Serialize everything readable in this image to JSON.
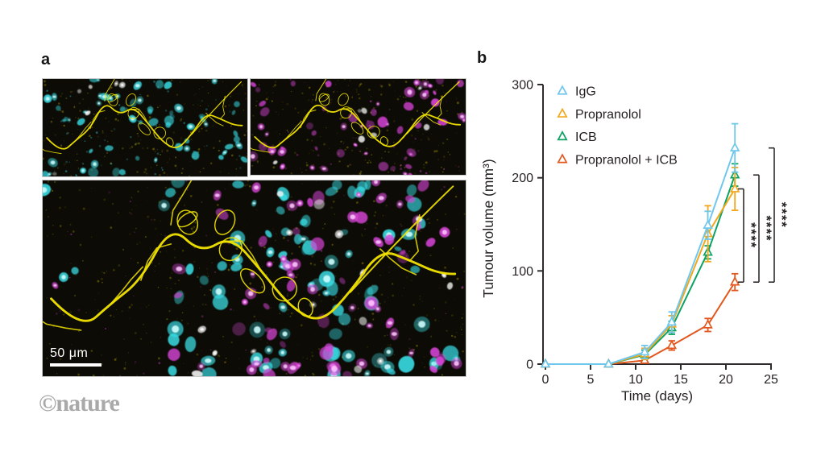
{
  "watermark": "©nature",
  "panel_a": {
    "label": "a",
    "scale_bar_label": "50 μm",
    "microscopy": {
      "background": "#0c0b05",
      "palette": {
        "cyan": "#38dce4",
        "cyan_bright": "#ccffff",
        "magenta": "#d944d9",
        "magenta_bright": "#ffc2ff",
        "white": "#ffffff",
        "yellow": "#f2e400",
        "yellow_dim": "#b5a300"
      },
      "panels": [
        {
          "id": "micro-top-left",
          "name": "cyan-channel",
          "seed": 7,
          "cells": [
            {
              "color": "cyan",
              "bright": "cyan_bright",
              "count": 62,
              "rmin": 2.5,
              "rmax": 6.5
            },
            {
              "color": "white",
              "bright": "white",
              "count": 6,
              "rmin": 2.5,
              "rmax": 4.5
            }
          ],
          "speckles": [
            {
              "color": "yellow_dim",
              "count": 210
            },
            {
              "color": "cyan",
              "count": 70
            }
          ]
        },
        {
          "id": "micro-top-right",
          "name": "magenta-channel",
          "seed": 13,
          "cells": [
            {
              "color": "magenta",
              "bright": "magenta_bright",
              "count": 58,
              "rmin": 2.5,
              "rmax": 6.5
            },
            {
              "color": "white",
              "bright": "white",
              "count": 7,
              "rmin": 2.5,
              "rmax": 4.5
            }
          ],
          "speckles": [
            {
              "color": "yellow_dim",
              "count": 230
            },
            {
              "color": "magenta",
              "count": 50
            }
          ]
        },
        {
          "id": "micro-bottom",
          "name": "merged-channels",
          "seed": 29,
          "cells": [
            {
              "color": "cyan",
              "bright": "cyan_bright",
              "count": 88,
              "rmin": 4,
              "rmax": 10
            },
            {
              "color": "magenta",
              "bright": "magenta_bright",
              "count": 74,
              "rmin": 3.5,
              "rmax": 9
            },
            {
              "color": "white",
              "bright": "white",
              "count": 16,
              "rmin": 3.5,
              "rmax": 7
            }
          ],
          "speckles": [
            {
              "color": "yellow_dim",
              "count": 420
            },
            {
              "color": "magenta",
              "count": 80
            }
          ]
        }
      ]
    }
  },
  "panel_b": {
    "label": "b"
  },
  "chart_data": {
    "type": "line",
    "title": "",
    "xlabel": "Time (days)",
    "ylabel": "Tumour volume (mm³)",
    "x": [
      0,
      7,
      11,
      14,
      18,
      21
    ],
    "xticks": [
      0,
      5,
      10,
      15,
      20,
      25
    ],
    "yticks": [
      0,
      100,
      200,
      300
    ],
    "xlim": [
      0,
      25
    ],
    "ylim": [
      0,
      300
    ],
    "grid": false,
    "legend_position": "upper-left-inside",
    "axis_color": "#2f2b2c",
    "series": [
      {
        "name": "IgG",
        "color": "#6fc7ec",
        "marker": "open-triangle",
        "values": [
          0,
          0,
          13,
          45,
          149,
          232
        ],
        "errors": [
          0,
          0,
          7,
          11,
          15,
          26
        ]
      },
      {
        "name": "Propranolol",
        "color": "#f2a71c",
        "marker": "open-triangle",
        "values": [
          0,
          0,
          11,
          43,
          140,
          188
        ],
        "errors": [
          0,
          0,
          6,
          9,
          30,
          23
        ]
      },
      {
        "name": "ICB",
        "color": "#0ba263",
        "marker": "open-triangle",
        "values": [
          0,
          0,
          10,
          39,
          120,
          203
        ],
        "errors": [
          0,
          0,
          5,
          7,
          7,
          12
        ]
      },
      {
        "name": "Propranolol + ICB",
        "color": "#e2571d",
        "marker": "open-triangle",
        "values": [
          0,
          0,
          4,
          20,
          42,
          88
        ],
        "errors": [
          0,
          0,
          2,
          5,
          7,
          9
        ]
      }
    ],
    "significance": [
      {
        "label": "****",
        "from": "Propranolol + ICB",
        "to": "Propranolol"
      },
      {
        "label": "****",
        "from": "Propranolol + ICB",
        "to": "ICB"
      },
      {
        "label": "****",
        "from": "Propranolol + ICB",
        "to": "IgG"
      }
    ]
  }
}
